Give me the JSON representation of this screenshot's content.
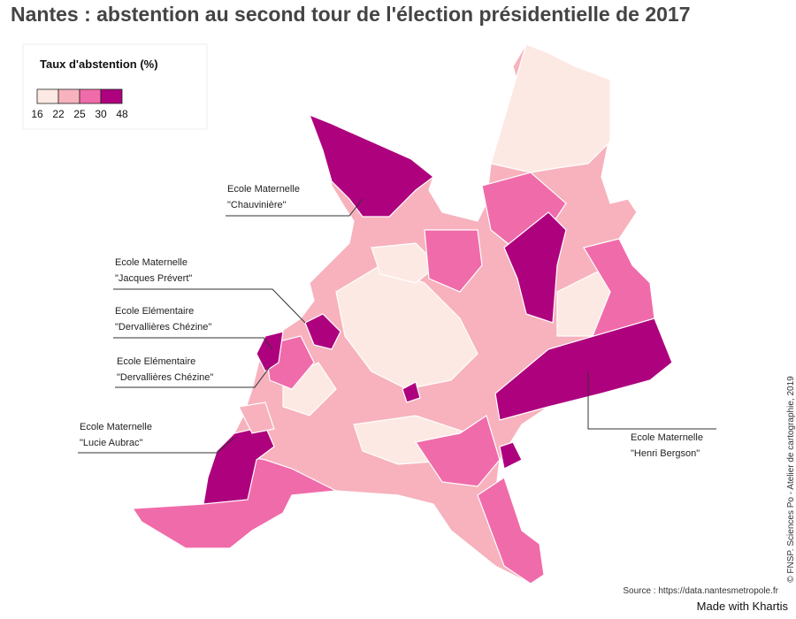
{
  "title": "Nantes : abstention au second tour de l'élection présidentielle de 2017",
  "legend": {
    "title": "Taux d'abstention (%)",
    "breaks": [
      16,
      22,
      25,
      30,
      48
    ],
    "colors": [
      "#fde9e3",
      "#f7b2bd",
      "#f06ba9",
      "#ae017e"
    ]
  },
  "annotations": [
    {
      "lines": [
        "Ecole Maternelle",
        "\"Chauvinière\""
      ]
    },
    {
      "lines": [
        "Ecole Maternelle",
        "\"Jacques Prévert\""
      ]
    },
    {
      "lines": [
        "Ecole Elémentaire",
        "\"Dervallières Chézine\""
      ]
    },
    {
      "lines": [
        "Ecole Elémentaire",
        "\"Dervallières Chézine\""
      ]
    },
    {
      "lines": [
        "Ecole Maternelle",
        "\"Lucie Aubrac\""
      ]
    },
    {
      "lines": [
        "Ecole Maternelle",
        "\"Henri Bergson\""
      ]
    }
  ],
  "source": "Source : https://data.nantesmetropole.fr",
  "credit": "© FNSP. Sciences Po - Atelier de cartographie, 2019",
  "footer": "Made with Khartis"
}
